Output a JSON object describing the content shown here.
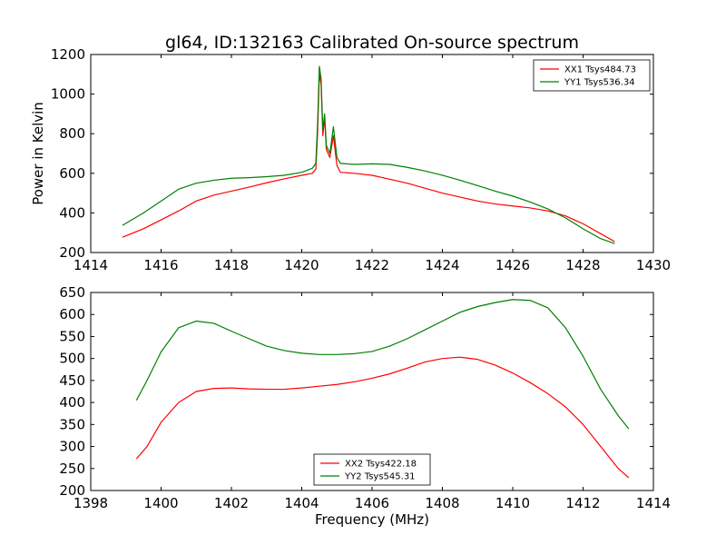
{
  "title": "gl64, ID:132163 Calibrated On-source spectrum",
  "chart_data": [
    {
      "type": "line",
      "title": "gl64, ID:132163 Calibrated On-source spectrum",
      "xlabel": "",
      "ylabel": "Power in Kelvin",
      "xlim": [
        1414,
        1430
      ],
      "ylim": [
        200,
        1200
      ],
      "xticks": [
        1414,
        1416,
        1418,
        1420,
        1422,
        1424,
        1426,
        1428,
        1430
      ],
      "yticks": [
        200,
        400,
        600,
        800,
        1000,
        1200
      ],
      "legend_position": "top-right",
      "grid": false,
      "series": [
        {
          "name": "XX1 Tsys484.73",
          "color": "#ff0000",
          "points": [
            [
              1414.9,
              277
            ],
            [
              1415.5,
              320
            ],
            [
              1416.0,
              365
            ],
            [
              1416.5,
              410
            ],
            [
              1417.0,
              460
            ],
            [
              1417.5,
              490
            ],
            [
              1418.0,
              510
            ],
            [
              1418.5,
              530
            ],
            [
              1419.0,
              552
            ],
            [
              1419.5,
              572
            ],
            [
              1420.0,
              590
            ],
            [
              1420.3,
              600
            ],
            [
              1420.4,
              620
            ],
            [
              1420.45,
              800
            ],
            [
              1420.5,
              1100
            ],
            [
              1420.55,
              1050
            ],
            [
              1420.6,
              790
            ],
            [
              1420.65,
              880
            ],
            [
              1420.7,
              720
            ],
            [
              1420.8,
              680
            ],
            [
              1420.9,
              790
            ],
            [
              1421.0,
              640
            ],
            [
              1421.1,
              605
            ],
            [
              1421.5,
              600
            ],
            [
              1422.0,
              590
            ],
            [
              1422.5,
              570
            ],
            [
              1423.0,
              550
            ],
            [
              1423.5,
              525
            ],
            [
              1424.0,
              500
            ],
            [
              1424.5,
              480
            ],
            [
              1425.0,
              460
            ],
            [
              1425.5,
              445
            ],
            [
              1426.0,
              435
            ],
            [
              1426.5,
              425
            ],
            [
              1427.0,
              410
            ],
            [
              1427.5,
              385
            ],
            [
              1428.0,
              345
            ],
            [
              1428.5,
              295
            ],
            [
              1428.9,
              255
            ]
          ]
        },
        {
          "name": "YY1 Tsys536.34",
          "color": "#008000",
          "points": [
            [
              1414.9,
              337
            ],
            [
              1415.5,
              400
            ],
            [
              1416.0,
              460
            ],
            [
              1416.5,
              520
            ],
            [
              1417.0,
              550
            ],
            [
              1417.5,
              565
            ],
            [
              1418.0,
              575
            ],
            [
              1418.5,
              578
            ],
            [
              1419.0,
              583
            ],
            [
              1419.5,
              590
            ],
            [
              1420.0,
              605
            ],
            [
              1420.3,
              625
            ],
            [
              1420.4,
              650
            ],
            [
              1420.45,
              850
            ],
            [
              1420.5,
              1140
            ],
            [
              1420.55,
              1080
            ],
            [
              1420.6,
              820
            ],
            [
              1420.65,
              900
            ],
            [
              1420.7,
              740
            ],
            [
              1420.8,
              700
            ],
            [
              1420.9,
              835
            ],
            [
              1421.0,
              680
            ],
            [
              1421.1,
              650
            ],
            [
              1421.5,
              645
            ],
            [
              1422.0,
              648
            ],
            [
              1422.5,
              645
            ],
            [
              1423.0,
              630
            ],
            [
              1423.5,
              612
            ],
            [
              1424.0,
              590
            ],
            [
              1424.5,
              565
            ],
            [
              1425.0,
              538
            ],
            [
              1425.5,
              510
            ],
            [
              1426.0,
              485
            ],
            [
              1426.5,
              455
            ],
            [
              1427.0,
              420
            ],
            [
              1427.5,
              375
            ],
            [
              1428.0,
              320
            ],
            [
              1428.5,
              270
            ],
            [
              1428.9,
              245
            ]
          ]
        }
      ]
    },
    {
      "type": "line",
      "title": "",
      "xlabel": "Frequency (MHz)",
      "ylabel": "",
      "xlim": [
        1398,
        1414
      ],
      "ylim": [
        200,
        650
      ],
      "xticks": [
        1398,
        1400,
        1402,
        1404,
        1406,
        1408,
        1410,
        1412,
        1414
      ],
      "yticks": [
        200,
        250,
        300,
        350,
        400,
        450,
        500,
        550,
        600,
        650
      ],
      "legend_position": "bottom-center",
      "grid": false,
      "series": [
        {
          "name": "XX2 Tsys422.18",
          "color": "#ff0000",
          "points": [
            [
              1399.3,
              272
            ],
            [
              1399.6,
              300
            ],
            [
              1400.0,
              355
            ],
            [
              1400.5,
              400
            ],
            [
              1401.0,
              425
            ],
            [
              1401.5,
              432
            ],
            [
              1402.0,
              433
            ],
            [
              1402.5,
              431
            ],
            [
              1403.0,
              430
            ],
            [
              1403.5,
              430
            ],
            [
              1404.0,
              433
            ],
            [
              1404.5,
              437
            ],
            [
              1405.0,
              441
            ],
            [
              1405.5,
              447
            ],
            [
              1406.0,
              455
            ],
            [
              1406.5,
              465
            ],
            [
              1407.0,
              478
            ],
            [
              1407.5,
              492
            ],
            [
              1408.0,
              500
            ],
            [
              1408.5,
              503
            ],
            [
              1409.0,
              498
            ],
            [
              1409.5,
              485
            ],
            [
              1410.0,
              467
            ],
            [
              1410.5,
              445
            ],
            [
              1411.0,
              420
            ],
            [
              1411.5,
              390
            ],
            [
              1412.0,
              350
            ],
            [
              1412.5,
              300
            ],
            [
              1413.0,
              250
            ],
            [
              1413.3,
              229
            ]
          ]
        },
        {
          "name": "YY2 Tsys545.31",
          "color": "#008000",
          "points": [
            [
              1399.3,
              405
            ],
            [
              1399.6,
              450
            ],
            [
              1400.0,
              515
            ],
            [
              1400.5,
              570
            ],
            [
              1401.0,
              585
            ],
            [
              1401.5,
              580
            ],
            [
              1402.0,
              562
            ],
            [
              1402.5,
              545
            ],
            [
              1403.0,
              528
            ],
            [
              1403.5,
              518
            ],
            [
              1404.0,
              512
            ],
            [
              1404.5,
              509
            ],
            [
              1405.0,
              509
            ],
            [
              1405.5,
              511
            ],
            [
              1406.0,
              516
            ],
            [
              1406.5,
              528
            ],
            [
              1407.0,
              545
            ],
            [
              1407.5,
              565
            ],
            [
              1408.0,
              585
            ],
            [
              1408.5,
              605
            ],
            [
              1409.0,
              618
            ],
            [
              1409.5,
              627
            ],
            [
              1410.0,
              634
            ],
            [
              1410.5,
              632
            ],
            [
              1411.0,
              615
            ],
            [
              1411.5,
              570
            ],
            [
              1412.0,
              505
            ],
            [
              1412.5,
              430
            ],
            [
              1413.0,
              370
            ],
            [
              1413.3,
              340
            ]
          ]
        }
      ]
    }
  ]
}
